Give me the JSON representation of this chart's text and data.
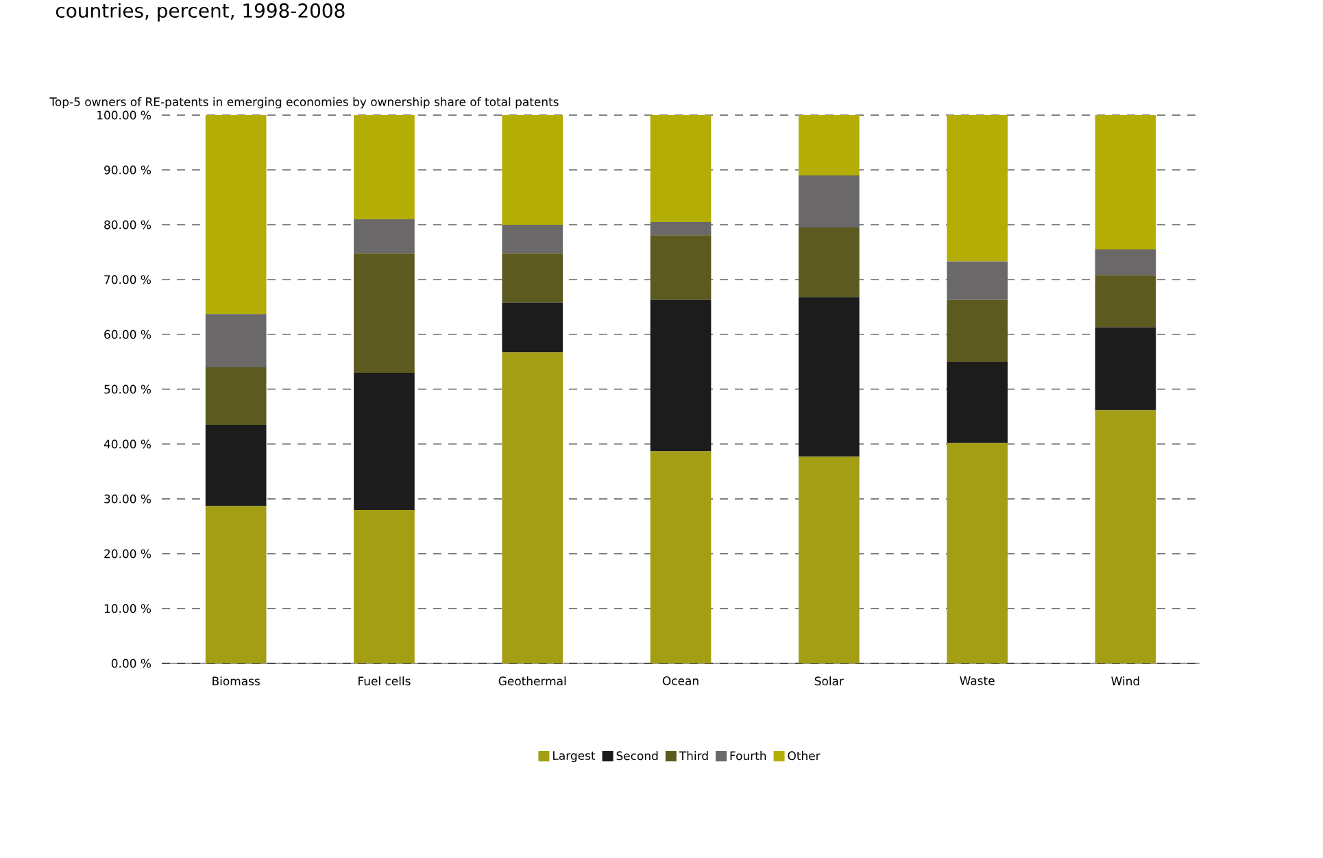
{
  "chart_data": {
    "type": "bar",
    "stacked": true,
    "title": "Top-5 owners of RE-patents in emerging economies by ownership share of total patents",
    "annotations": [
      "countries, percent, 1998-2008"
    ],
    "categories": [
      "Biomass",
      "Fuel cells",
      "Geothermal",
      "Ocean",
      "Solar",
      "Waste",
      "Wind"
    ],
    "series": [
      {
        "name": "Largest",
        "color": "#a39e14",
        "values": [
          28.7,
          28.0,
          56.7,
          38.7,
          37.7,
          40.2,
          46.2
        ]
      },
      {
        "name": "Second",
        "color": "#1c1c1c",
        "values": [
          14.8,
          25.0,
          9.1,
          27.6,
          29.1,
          14.8,
          15.1
        ]
      },
      {
        "name": "Third",
        "color": "#5c5a1e",
        "values": [
          10.5,
          21.8,
          9.0,
          11.8,
          12.7,
          11.3,
          9.5
        ]
      },
      {
        "name": "Fourth",
        "color": "#6a6868",
        "values": [
          9.7,
          6.2,
          5.2,
          2.4,
          9.5,
          7.0,
          4.7
        ]
      },
      {
        "name": "Other",
        "color": "#b3ad06",
        "values": [
          36.3,
          19.0,
          20.0,
          19.5,
          11.0,
          26.7,
          24.5
        ]
      }
    ],
    "ylim": [
      0,
      100
    ],
    "yticks": [
      {
        "value": 0,
        "label": "0.00 %"
      },
      {
        "value": 10,
        "label": "10.00 %"
      },
      {
        "value": 20,
        "label": "20.00 %"
      },
      {
        "value": 30,
        "label": "30.00 %"
      },
      {
        "value": 40,
        "label": "40.00 %"
      },
      {
        "value": 50,
        "label": "50.00 %"
      },
      {
        "value": 60,
        "label": "60.00 %"
      },
      {
        "value": 70,
        "label": "70.00 %"
      },
      {
        "value": 80,
        "label": "80.00 %"
      },
      {
        "value": 90,
        "label": "90.00 %"
      },
      {
        "value": 100,
        "label": "100.00 %"
      }
    ],
    "grid": "y",
    "legend": "bottom"
  }
}
